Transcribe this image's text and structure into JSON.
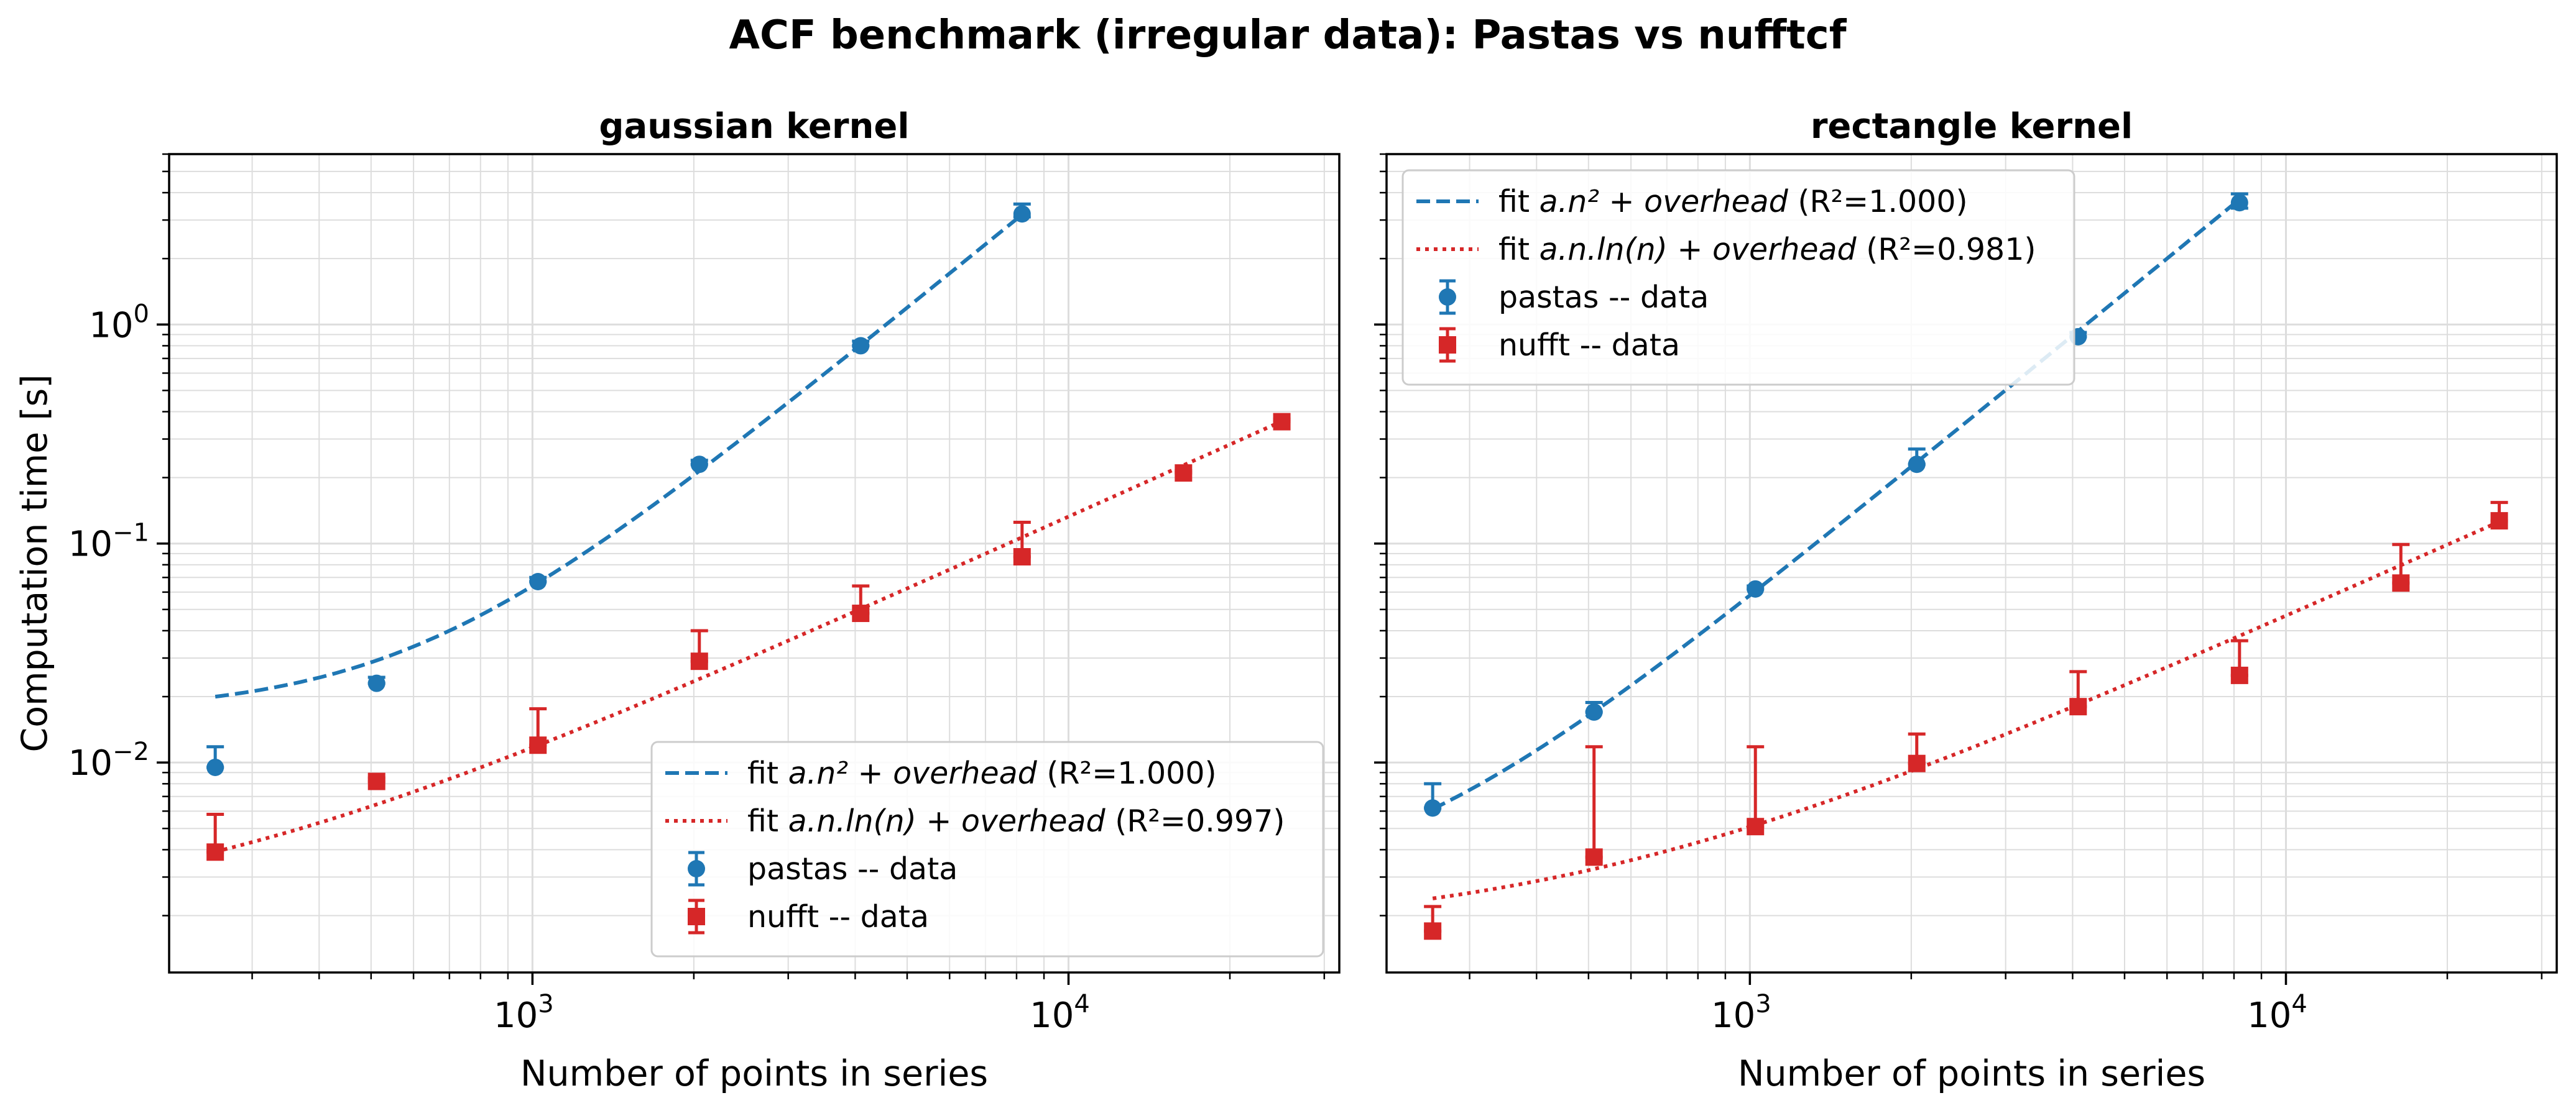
{
  "figure": {
    "title": "ACF benchmark (irregular data): Pastas vs nufftcf",
    "colors": {
      "pastas": "#1f77b4",
      "nufft": "#d62728",
      "grid": "#dddddd",
      "legend_border": "#cccccc"
    }
  },
  "chart_data": [
    {
      "type": "scatter",
      "title": "gaussian kernel",
      "xlabel": "Number of points in series",
      "ylabel": "Computation time [s]",
      "xscale": "log",
      "yscale": "log",
      "xlim": [
        210,
        32000
      ],
      "ylim": [
        0.0011,
        6.0
      ],
      "xticks": [
        {
          "value": 1000,
          "base": "10",
          "exp": "3"
        },
        {
          "value": 10000,
          "base": "10",
          "exp": "4"
        }
      ],
      "yticks": [
        {
          "value": 0.01,
          "base": "10",
          "exp": "−2"
        },
        {
          "value": 0.1,
          "base": "10",
          "exp": "−1"
        },
        {
          "value": 1,
          "base": "10",
          "exp": "0"
        }
      ],
      "grid": true,
      "legend_position": "lower-right",
      "series": [
        {
          "name": "pastas -- data",
          "marker": "circle",
          "color": "#1f77b4",
          "x": [
            256,
            512,
            1024,
            2048,
            4096,
            8192
          ],
          "y": [
            0.0095,
            0.023,
            0.067,
            0.23,
            0.8,
            3.2
          ],
          "err_upper": [
            0.0118,
            0.0245,
            0.07,
            0.24,
            0.84,
            3.55
          ],
          "err_lower": [
            0.0095,
            0.023,
            0.067,
            0.23,
            0.8,
            3.1
          ]
        },
        {
          "name": "nufft -- data",
          "marker": "square",
          "color": "#d62728",
          "x": [
            256,
            512,
            1024,
            2048,
            4096,
            8192,
            16384,
            25000
          ],
          "y": [
            0.0039,
            0.0082,
            0.012,
            0.029,
            0.048,
            0.087,
            0.21,
            0.36
          ],
          "err_upper": [
            0.0058,
            0.0085,
            0.0176,
            0.04,
            0.064,
            0.125,
            0.215,
            0.37
          ],
          "err_lower": [
            0.0039,
            0.0082,
            0.012,
            0.029,
            0.048,
            0.087,
            0.21,
            0.36
          ]
        }
      ],
      "fits": [
        {
          "label_prefix": "fit ",
          "formula": "a.n² + overhead",
          "r2_text": " (R²=1.000)",
          "color": "#1f77b4",
          "dash": "dashed",
          "model": "n2",
          "a": 4.71e-08,
          "overhead": 0.0169,
          "x_range": [
            256,
            8192
          ]
        },
        {
          "label_prefix": "fit ",
          "formula": "a.n.ln(n) + overhead",
          "r2_text": " (R²=0.997)",
          "color": "#d62728",
          "dash": "dotted",
          "model": "nlogn",
          "a": 1.42e-06,
          "overhead": 0.0019,
          "x_range": [
            256,
            25000
          ]
        }
      ]
    },
    {
      "type": "scatter",
      "title": "rectangle kernel",
      "xlabel": "Number of points in series",
      "ylabel": "",
      "xscale": "log",
      "yscale": "log",
      "xlim": [
        210,
        32000
      ],
      "ylim": [
        0.0011,
        6.0
      ],
      "xticks": [
        {
          "value": 1000,
          "base": "10",
          "exp": "3"
        },
        {
          "value": 10000,
          "base": "10",
          "exp": "4"
        }
      ],
      "yticks": [],
      "grid": true,
      "legend_position": "top-left",
      "series": [
        {
          "name": "pastas -- data",
          "marker": "circle",
          "color": "#1f77b4",
          "x": [
            256,
            512,
            1024,
            2048,
            4096,
            8192
          ],
          "y": [
            0.0062,
            0.017,
            0.062,
            0.23,
            0.88,
            3.6
          ],
          "err_upper": [
            0.008,
            0.0188,
            0.064,
            0.27,
            0.92,
            3.95
          ],
          "err_lower": [
            0.0062,
            0.017,
            0.062,
            0.23,
            0.88,
            3.4
          ]
        },
        {
          "name": "nufft -- data",
          "marker": "square",
          "color": "#d62728",
          "x": [
            256,
            512,
            1024,
            2048,
            4096,
            8192,
            16384,
            25000
          ],
          "y": [
            0.0017,
            0.0037,
            0.0051,
            0.0099,
            0.018,
            0.025,
            0.066,
            0.127
          ],
          "err_upper": [
            0.0022,
            0.0118,
            0.0118,
            0.0135,
            0.026,
            0.036,
            0.099,
            0.154
          ],
          "err_lower": [
            0.0017,
            0.0037,
            0.0051,
            0.0099,
            0.018,
            0.025,
            0.066,
            0.127
          ]
        }
      ],
      "fits": [
        {
          "label_prefix": "fit ",
          "formula": "a.n² + overhead",
          "r2_text": " (R²=1.000)",
          "color": "#1f77b4",
          "dash": "dashed",
          "model": "n2",
          "a": 5.55e-08,
          "overhead": 0.0025,
          "x_range": [
            256,
            8192
          ]
        },
        {
          "label_prefix": "fit ",
          "formula": "a.n.ln(n) + overhead",
          "r2_text": " (R²=0.981)",
          "color": "#d62728",
          "dash": "dotted",
          "model": "nlogn",
          "a": 4.9e-07,
          "overhead": 0.0017,
          "x_range": [
            256,
            25000
          ]
        }
      ]
    }
  ]
}
